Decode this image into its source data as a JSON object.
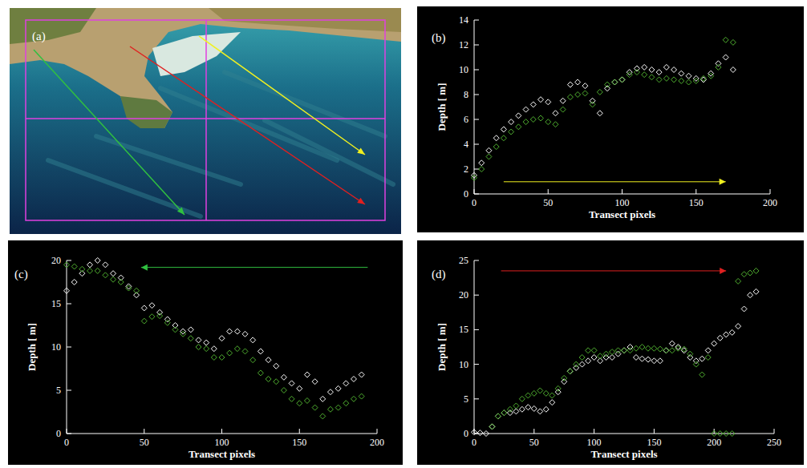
{
  "image": {
    "panel": "(a)"
  },
  "chart_data": [
    {
      "type": "scatter",
      "panel": "(b)",
      "x_label": "Transect pixels",
      "y_label": "Depth [ m]",
      "x": [
        0,
        5,
        10,
        15,
        20,
        25,
        30,
        35,
        40,
        45,
        50,
        55,
        60,
        65,
        70,
        75,
        80,
        85,
        90,
        95,
        100,
        105,
        110,
        115,
        120,
        125,
        130,
        135,
        140,
        145,
        150,
        155,
        160,
        165,
        170,
        175
      ],
      "series": [
        {
          "color": "#ffffff",
          "marker": "diamond",
          "values": [
            1.5,
            2.5,
            3.5,
            4.5,
            5.2,
            5.8,
            6.3,
            6.8,
            7.2,
            7.6,
            7.4,
            6.5,
            7.5,
            8.8,
            9.0,
            8.7,
            7.5,
            6.5,
            8.5,
            9.0,
            9.2,
            9.8,
            10.1,
            10.2,
            10.0,
            9.8,
            10.2,
            10.0,
            9.7,
            9.5,
            9.3,
            9.2,
            9.7,
            10.5,
            11.0,
            10.0
          ]
        },
        {
          "color": "#50b030",
          "marker": "diamond",
          "values": [
            1.3,
            2.0,
            3.0,
            3.8,
            4.5,
            5.0,
            5.4,
            5.8,
            6.0,
            6.1,
            5.8,
            5.6,
            6.8,
            7.8,
            8.0,
            8.1,
            7.2,
            8.2,
            8.8,
            9.0,
            9.2,
            9.6,
            9.8,
            9.6,
            9.4,
            9.2,
            9.3,
            9.2,
            9.1,
            9.0,
            9.1,
            9.3,
            9.5,
            10.2,
            12.4,
            12.2
          ]
        }
      ],
      "xlim": [
        0,
        200
      ],
      "ylim": [
        0,
        14
      ],
      "xticks": [
        0,
        50,
        100,
        150,
        200
      ],
      "yticks": [
        0,
        2,
        4,
        6,
        8,
        10,
        12,
        14
      ]
    },
    {
      "type": "scatter",
      "panel": "(c)",
      "x_label": "Transect pixels",
      "y_label": "Depth [ m]",
      "x": [
        0,
        5,
        10,
        15,
        20,
        25,
        30,
        35,
        40,
        45,
        50,
        55,
        60,
        65,
        70,
        75,
        80,
        85,
        90,
        95,
        100,
        105,
        110,
        115,
        120,
        125,
        130,
        135,
        140,
        145,
        150,
        155,
        160,
        165,
        170,
        175,
        180,
        185,
        190
      ],
      "series": [
        {
          "color": "#ffffff",
          "marker": "diamond",
          "values": [
            16.5,
            17.5,
            18.5,
            19.5,
            20,
            19.5,
            18.5,
            18,
            17,
            16,
            14.5,
            14.8,
            14,
            13.2,
            12.5,
            11.8,
            12,
            10.8,
            10.5,
            9.8,
            11,
            11.8,
            11.8,
            11.5,
            10.8,
            9.5,
            8.5,
            7.8,
            6.5,
            5.8,
            5.2,
            6.8,
            6.0,
            4.0,
            4.8,
            5.2,
            5.8,
            6.3,
            6.8
          ]
        },
        {
          "color": "#50b030",
          "marker": "diamond",
          "values": [
            19.5,
            19.3,
            19.0,
            18.8,
            18.8,
            18.3,
            17.8,
            17.5,
            16.8,
            16.5,
            13,
            13.5,
            13.6,
            12.8,
            12.0,
            11.5,
            11.0,
            10.0,
            9.8,
            8.8,
            8.8,
            9.3,
            9.8,
            9.5,
            8.5,
            7.0,
            6.3,
            6.0,
            5.0,
            4.0,
            3.5,
            3.8,
            3.0,
            2.0,
            2.8,
            3.0,
            3.5,
            4.0,
            4.3
          ]
        }
      ],
      "xlim": [
        0,
        200
      ],
      "ylim": [
        0,
        20
      ],
      "xticks": [
        0,
        50,
        100,
        150,
        200
      ],
      "yticks": [
        0,
        5,
        10,
        15,
        20
      ]
    },
    {
      "type": "scatter",
      "panel": "(d)",
      "x_label": "Transect pixels",
      "y_label": "Depth [ m]",
      "x": [
        0,
        5,
        10,
        15,
        20,
        25,
        30,
        35,
        40,
        45,
        50,
        55,
        60,
        65,
        70,
        75,
        80,
        85,
        90,
        95,
        100,
        105,
        110,
        115,
        120,
        125,
        130,
        135,
        140,
        145,
        150,
        155,
        160,
        165,
        170,
        175,
        180,
        185,
        190,
        195,
        200,
        205,
        210,
        215,
        220,
        225,
        230,
        235
      ],
      "series": [
        {
          "color": "#ffffff",
          "marker": "diamond",
          "values": [
            0.2,
            0.1,
            0,
            1,
            2.5,
            3,
            3,
            3.2,
            3.5,
            3.8,
            3.6,
            3.2,
            3.5,
            4.5,
            6,
            7.5,
            9,
            9.5,
            10,
            10.5,
            11,
            10.5,
            11,
            11,
            11.5,
            12,
            12.5,
            11,
            10.8,
            10.7,
            10.5,
            10.5,
            12,
            13,
            12.5,
            12,
            11,
            10.5,
            10.8,
            12,
            13,
            13.8,
            14.3,
            14.6,
            15.5,
            18,
            20,
            20.5
          ]
        },
        {
          "color": "#50b030",
          "marker": "diamond",
          "values": [
            null,
            null,
            null,
            1,
            2.5,
            3,
            3.5,
            4,
            5,
            5.5,
            5.8,
            6.2,
            5.8,
            5.5,
            6.5,
            8,
            9,
            10,
            11,
            12,
            12,
            11.2,
            11.5,
            11.8,
            12,
            12,
            12,
            12.3,
            12.5,
            12.3,
            12.3,
            12.2,
            12,
            12,
            12.3,
            12.2,
            11.5,
            10,
            8.5,
            11,
            0,
            0,
            0,
            0,
            22,
            23,
            23.2,
            23.5
          ]
        }
      ],
      "xlim": [
        0,
        250
      ],
      "ylim": [
        0,
        25
      ],
      "xticks": [
        0,
        50,
        100,
        150,
        200,
        250
      ],
      "yticks": [
        0,
        5,
        10,
        15,
        20,
        25
      ]
    }
  ]
}
